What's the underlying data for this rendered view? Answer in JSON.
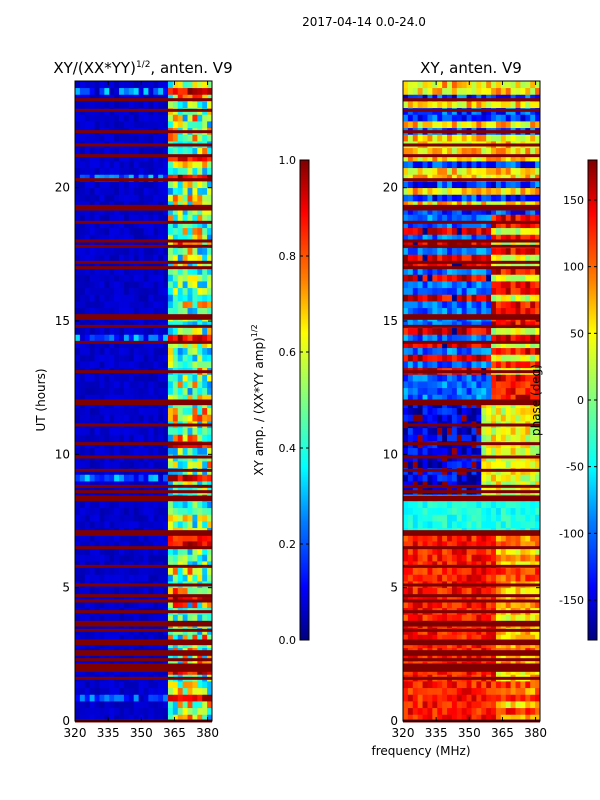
{
  "suptitle": "2017-04-14 0.0-24.0",
  "colors": {
    "jet_stops": [
      "#00007f",
      "#0000ff",
      "#0080ff",
      "#00ffff",
      "#80ff80",
      "#ffff00",
      "#ff8000",
      "#ff0000",
      "#7f0000"
    ],
    "rfi_flag": "#7f0000",
    "frame": "#000000"
  },
  "chart_data": [
    {
      "type": "heatmap",
      "panel": "amplitude",
      "title_base": "XY/(XX*YY)",
      "title_power": "1/2",
      "title_suffix": ", anten. V9",
      "ylabel": "UT (hours)",
      "xlabel": "",
      "xlim": [
        320,
        382
      ],
      "ylim": [
        0,
        24
      ],
      "xticks": [
        "320",
        "335",
        "350",
        "365",
        "380"
      ],
      "xtick_values": [
        320,
        335,
        350,
        365,
        380
      ],
      "yticks": [
        "0",
        "5",
        "10",
        "15",
        "20"
      ],
      "ytick_values": [
        0,
        5,
        10,
        15,
        20
      ],
      "colorbar": {
        "label_base": "XY amp. / (XX*YY amp)",
        "label_power": "1/2",
        "range": [
          0.0,
          1.0
        ],
        "ticks": [
          "0.0",
          "0.2",
          "0.4",
          "0.6",
          "0.8",
          "1.0"
        ],
        "tick_values": [
          0.0,
          0.2,
          0.4,
          0.6,
          0.8,
          1.0
        ]
      },
      "flagged_ut_hours": [
        0.0,
        1.6,
        1.9,
        2.0,
        2.1,
        2.3,
        2.5,
        2.6,
        2.9,
        3.0,
        3.4,
        3.6,
        3.7,
        4.1,
        4.5,
        4.7,
        5.1,
        5.8,
        6.5,
        7.0,
        7.1,
        8.3,
        8.4,
        8.6,
        8.8,
        9.4,
        9.9,
        10.4,
        11.1,
        11.9,
        12.0,
        13.1,
        14.2,
        14.8,
        15.1,
        15.2,
        17.0,
        17.2,
        17.8,
        18.0,
        18.7,
        19.2,
        19.3,
        20.3,
        21.2,
        21.6,
        22.1,
        22.9,
        23.3
      ],
      "note": "Low normalized XY amplitude (~0.05) across 320-362 MHz; brighter patches (0.4-1.0) in the 362-382 MHz band; full-width horizontal flagged bands."
    },
    {
      "type": "heatmap",
      "panel": "phase",
      "title": "XY, anten. V9",
      "ylabel": "",
      "xlabel": "frequency (MHz)",
      "xlim": [
        320,
        382
      ],
      "ylim": [
        0,
        24
      ],
      "xticks": [
        "320",
        "335",
        "350",
        "365",
        "380"
      ],
      "xtick_values": [
        320,
        335,
        350,
        365,
        380
      ],
      "yticks": [
        "0",
        "5",
        "10",
        "15",
        "20"
      ],
      "ytick_values": [
        0,
        5,
        10,
        15,
        20
      ],
      "colorbar": {
        "label": "phase (deg)",
        "range": [
          -180,
          180
        ],
        "ticks": [
          "-150",
          "-100",
          "-50",
          "0",
          "50",
          "100",
          "150"
        ],
        "tick_values": [
          -150,
          -100,
          -50,
          0,
          50,
          100,
          150
        ]
      },
      "flagged_ut_hours": [
        0.0,
        1.6,
        1.9,
        2.0,
        2.1,
        2.3,
        2.5,
        2.6,
        2.9,
        3.0,
        3.4,
        3.6,
        3.7,
        4.1,
        4.5,
        4.7,
        5.1,
        5.8,
        6.5,
        7.0,
        7.1,
        8.3,
        8.4,
        8.6,
        8.8,
        9.4,
        9.9,
        10.4,
        11.1,
        11.9,
        12.0,
        13.1,
        14.2,
        14.8,
        15.1,
        15.2,
        17.0,
        17.2,
        17.8,
        18.0,
        18.7,
        19.2,
        19.3,
        20.3,
        21.2,
        21.6,
        22.1,
        22.9,
        23.3
      ],
      "note": "XY phase spanning -180 to 180 deg with horizontal banding in UT; cyan/green (~-50 deg) band near 7-8.5 UT; red/orange (~+150 deg) dominant at 0-7 UT."
    }
  ]
}
